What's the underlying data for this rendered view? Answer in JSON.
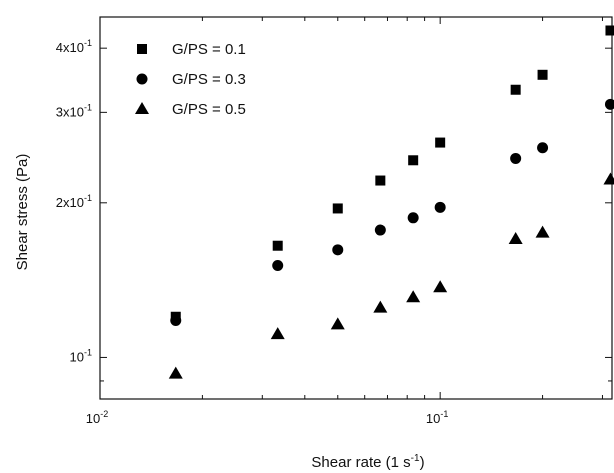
{
  "chart_data": {
    "type": "scatter",
    "xscale": "log",
    "yscale": "log",
    "xlim": [
      0.01,
      0.32
    ],
    "ylim": [
      0.083,
      0.46
    ],
    "xlabel": "Shear rate",
    "xlabel_unit_base": "1 s",
    "xlabel_unit_exp": "-1",
    "ylabel": "Shear stress (Pa)",
    "grid": false,
    "legend_position": "top-left",
    "x_ticks": [
      {
        "value": 0.01,
        "base": "10",
        "exp": "-2"
      },
      {
        "value": 0.1,
        "base": "10",
        "exp": "-1"
      }
    ],
    "y_ticks": [
      {
        "value": 0.1,
        "base": "10",
        "exp": "-1"
      },
      {
        "value": 0.2,
        "base": "2x10",
        "exp": "-1"
      },
      {
        "value": 0.3,
        "base": "3x10",
        "exp": "-1"
      },
      {
        "value": 0.4,
        "base": "4x10",
        "exp": "-1"
      }
    ],
    "series": [
      {
        "name": "G/PS = 0.1",
        "marker": "square",
        "x": [
          0.0167,
          0.0333,
          0.05,
          0.0667,
          0.0833,
          0.1,
          0.1667,
          0.2,
          0.3167
        ],
        "y": [
          0.12,
          0.165,
          0.195,
          0.221,
          0.242,
          0.262,
          0.332,
          0.355,
          0.433
        ]
      },
      {
        "name": "G/PS = 0.3",
        "marker": "circle",
        "x": [
          0.0167,
          0.0333,
          0.05,
          0.0667,
          0.0833,
          0.1,
          0.1667,
          0.2,
          0.3167
        ],
        "y": [
          0.118,
          0.151,
          0.162,
          0.177,
          0.187,
          0.196,
          0.244,
          0.256,
          0.311
        ]
      },
      {
        "name": "G/PS = 0.5",
        "marker": "triangle",
        "x": [
          0.0167,
          0.0333,
          0.05,
          0.0667,
          0.0833,
          0.1,
          0.1667,
          0.2,
          0.3167
        ],
        "y": [
          0.093,
          0.111,
          0.116,
          0.125,
          0.131,
          0.137,
          0.17,
          0.175,
          0.222
        ]
      }
    ]
  }
}
